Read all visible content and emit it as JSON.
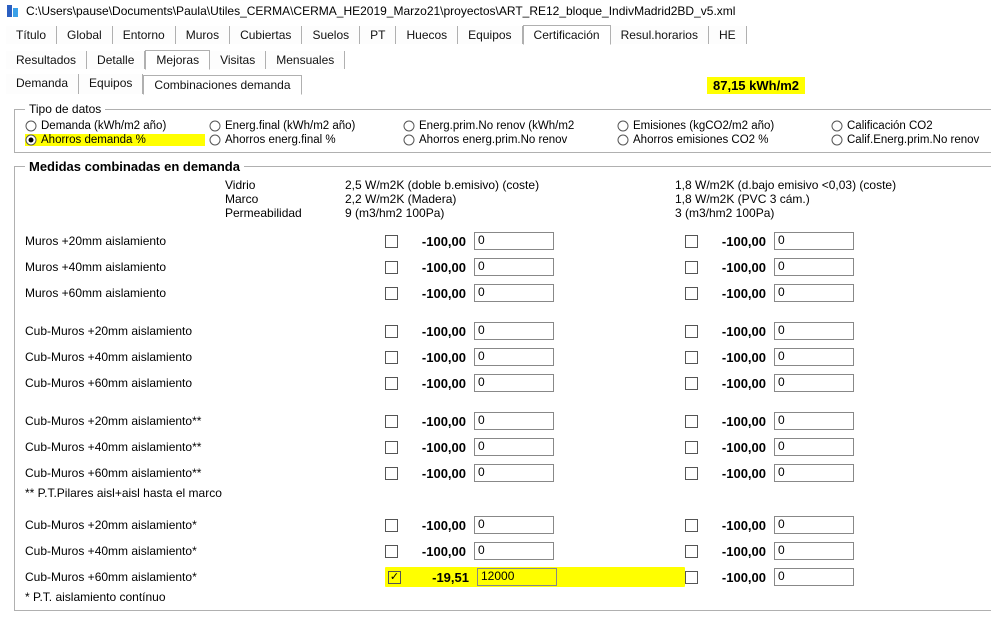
{
  "window": {
    "title": "C:\\Users\\pause\\Documents\\Paula\\Utiles_CERMA\\CERMA_HE2019_Marzo21\\proyectos\\ART_RE12_bloque_IndivMadrid2BD_v5.xml"
  },
  "colors": {
    "highlight": "#ffff00",
    "background": "#ffffff",
    "border": "#b0b0b0",
    "text": "#000000"
  },
  "tabs_main": {
    "items": [
      {
        "label": "Título"
      },
      {
        "label": "Global"
      },
      {
        "label": "Entorno"
      },
      {
        "label": "Muros"
      },
      {
        "label": "Cubiertas"
      },
      {
        "label": "Suelos"
      },
      {
        "label": "PT"
      },
      {
        "label": "Huecos"
      },
      {
        "label": "Equipos"
      },
      {
        "label": "Certificación",
        "active": true
      },
      {
        "label": "Resul.horarios"
      },
      {
        "label": "HE"
      }
    ]
  },
  "tabs_sub": {
    "items": [
      {
        "label": "Resultados"
      },
      {
        "label": "Detalle"
      },
      {
        "label": "Mejoras",
        "active": true
      },
      {
        "label": "Visitas"
      },
      {
        "label": "Mensuales"
      }
    ]
  },
  "tabs_third": {
    "items": [
      {
        "label": "Demanda"
      },
      {
        "label": "Equipos"
      },
      {
        "label": "Combinaciones demanda",
        "active": true
      }
    ],
    "metric": "87,15 kWh/m2"
  },
  "tipo_datos": {
    "legend": "Tipo de datos",
    "rows": [
      [
        {
          "label": "Demanda (kWh/m2 año)"
        },
        {
          "label": "Energ.final (kWh/m2 año)"
        },
        {
          "label": "Energ.prim.No renov (kWh/m2"
        },
        {
          "label": "Emisiones (kgCO2/m2 año)"
        },
        {
          "label": "Calificación CO2"
        }
      ],
      [
        {
          "label": "Ahorros demanda %",
          "selected": true,
          "highlight": true
        },
        {
          "label": "Ahorros energ.final %"
        },
        {
          "label": "Ahorros energ.prim.No renov"
        },
        {
          "label": "Ahorros emisiones CO2 %"
        },
        {
          "label": "Calif.Energ.prim.No renov"
        }
      ]
    ]
  },
  "medidas": {
    "legend": "Medidas combinadas en demanda",
    "props": {
      "p1": "Vidrio",
      "p2": "Marco",
      "p3": "Permeabilidad"
    },
    "colA": {
      "v1": "2,5 W/m2K  (doble b.emisivo) (coste)",
      "v2": "2,2 W/m2K (Madera)",
      "v3": "9 (m3/hm2 100Pa)"
    },
    "colB": {
      "v1": "1,8 W/m2K (d.bajo emisivo <0,03) (coste)",
      "v2": "1,8 W/m2K (PVC 3 cám.)",
      "v3": "3 (m3/hm2 100Pa)"
    },
    "rows": [
      {
        "label": "Muros +20mm aislamiento",
        "a": {
          "chk": false,
          "val": "-100,00",
          "txt": "0"
        },
        "b": {
          "chk": false,
          "val": "-100,00",
          "txt": "0"
        }
      },
      {
        "label": "Muros +40mm aislamiento",
        "a": {
          "chk": false,
          "val": "-100,00",
          "txt": "0"
        },
        "b": {
          "chk": false,
          "val": "-100,00",
          "txt": "0"
        }
      },
      {
        "label": "Muros +60mm aislamiento",
        "a": {
          "chk": false,
          "val": "-100,00",
          "txt": "0"
        },
        "b": {
          "chk": false,
          "val": "-100,00",
          "txt": "0"
        }
      },
      {
        "gap": true
      },
      {
        "label": "Cub-Muros +20mm aislamiento",
        "a": {
          "chk": false,
          "val": "-100,00",
          "txt": "0"
        },
        "b": {
          "chk": false,
          "val": "-100,00",
          "txt": "0"
        }
      },
      {
        "label": "Cub-Muros +40mm aislamiento",
        "a": {
          "chk": false,
          "val": "-100,00",
          "txt": "0"
        },
        "b": {
          "chk": false,
          "val": "-100,00",
          "txt": "0"
        }
      },
      {
        "label": "Cub-Muros +60mm aislamiento",
        "a": {
          "chk": false,
          "val": "-100,00",
          "txt": "0"
        },
        "b": {
          "chk": false,
          "val": "-100,00",
          "txt": "0"
        }
      },
      {
        "gap": true
      },
      {
        "label": "Cub-Muros +20mm aislamiento**",
        "a": {
          "chk": false,
          "val": "-100,00",
          "txt": "0"
        },
        "b": {
          "chk": false,
          "val": "-100,00",
          "txt": "0"
        }
      },
      {
        "label": "Cub-Muros +40mm aislamiento**",
        "a": {
          "chk": false,
          "val": "-100,00",
          "txt": "0"
        },
        "b": {
          "chk": false,
          "val": "-100,00",
          "txt": "0"
        }
      },
      {
        "label": "Cub-Muros +60mm aislamiento**",
        "note": "** P.T.Pilares aisl+aisl hasta el marco",
        "a": {
          "chk": false,
          "val": "-100,00",
          "txt": "0"
        },
        "b": {
          "chk": false,
          "val": "-100,00",
          "txt": "0"
        }
      },
      {
        "gap": true
      },
      {
        "label": "Cub-Muros +20mm aislamiento*",
        "a": {
          "chk": false,
          "val": "-100,00",
          "txt": "0"
        },
        "b": {
          "chk": false,
          "val": "-100,00",
          "txt": "0"
        }
      },
      {
        "label": "Cub-Muros +40mm aislamiento*",
        "a": {
          "chk": false,
          "val": "-100,00",
          "txt": "0"
        },
        "b": {
          "chk": false,
          "val": "-100,00",
          "txt": "0"
        }
      },
      {
        "label": "Cub-Muros +60mm aislamiento*",
        "note": "* P.T. aislamiento contínuo",
        "a": {
          "chk": true,
          "val": "-19,51",
          "txt": "12000",
          "highlight": true
        },
        "b": {
          "chk": false,
          "val": "-100,00",
          "txt": "0"
        }
      }
    ]
  }
}
